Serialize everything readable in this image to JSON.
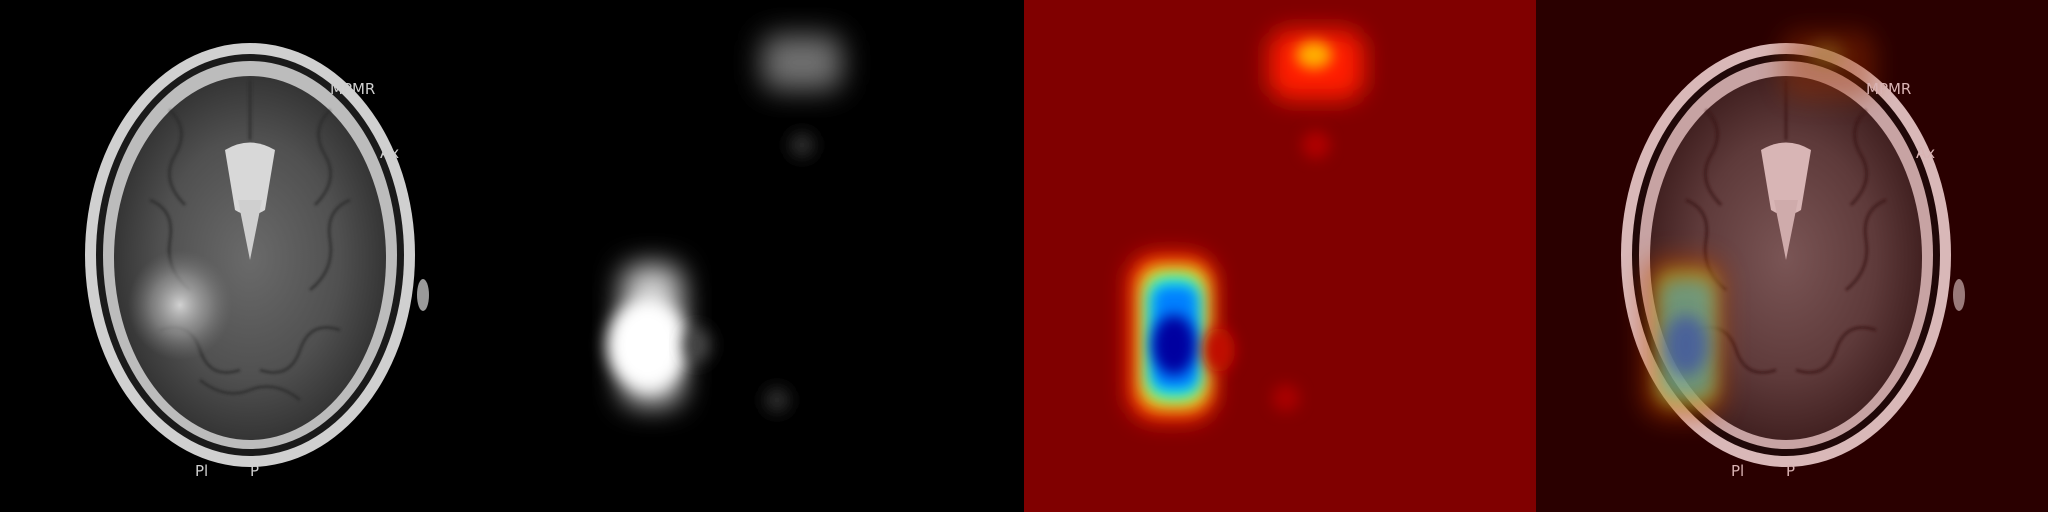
{
  "panels": [
    {
      "id": "mri",
      "kind": "mri-slice"
    },
    {
      "id": "heatmap-gray",
      "kind": "grayscale-attention-map"
    },
    {
      "id": "heatmap-jet",
      "kind": "jet-colormap-attention-map"
    },
    {
      "id": "overlay",
      "kind": "mri-with-heatmap-overlay"
    }
  ],
  "image_labels": {
    "top_right": "MPMR",
    "side_right": "Ax",
    "bottom_left": "Pl",
    "bottom_center": "P"
  },
  "colors": {
    "background": "#000000",
    "jet_background": "#800000",
    "overlay_tint": "#5a0d0d"
  }
}
